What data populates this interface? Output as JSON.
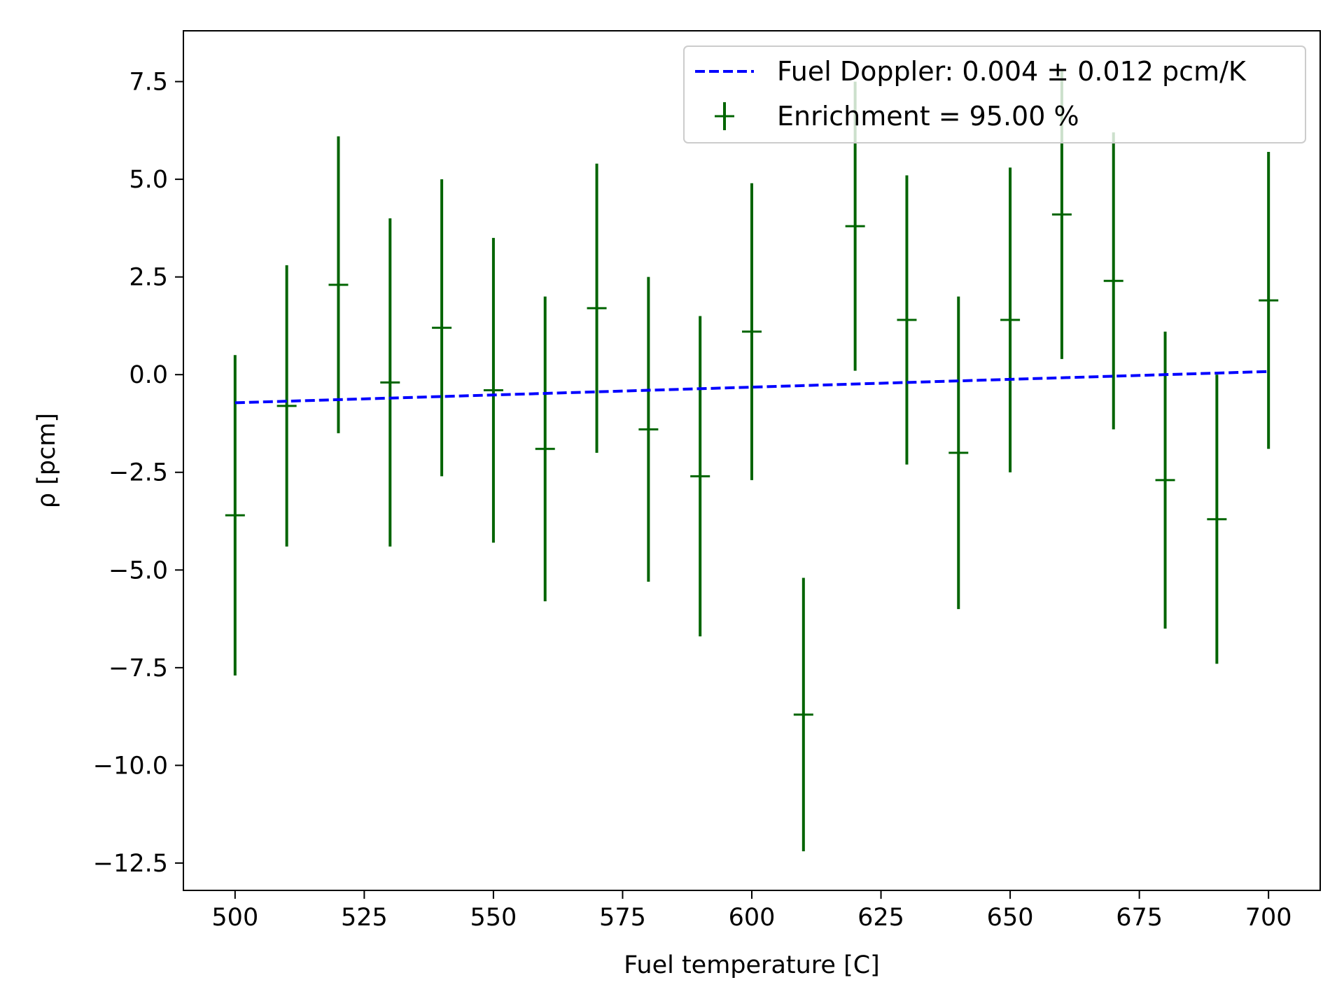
{
  "chart_data": {
    "type": "scatter",
    "xlabel": "Fuel temperature [C]",
    "ylabel": "ρ [pcm]",
    "xlim": [
      490,
      710
    ],
    "ylim": [
      -13.2,
      8.8
    ],
    "x_ticks": [
      500,
      525,
      550,
      575,
      600,
      625,
      650,
      675,
      700
    ],
    "x_tick_labels": [
      "500",
      "525",
      "550",
      "575",
      "600",
      "625",
      "650",
      "675",
      "700"
    ],
    "y_ticks": [
      7.5,
      5.0,
      2.5,
      0.0,
      -2.5,
      -5.0,
      -7.5,
      -10.0,
      -12.5
    ],
    "y_tick_labels": [
      "7.5",
      "5.0",
      "2.5",
      "0.0",
      "−2.5",
      "−5.0",
      "−7.5",
      "−10.0",
      "−12.5"
    ],
    "grid": false,
    "legend_position": "top-right",
    "series": [
      {
        "name": "Fuel Doppler: 0.004 ± 0.012 pcm/K",
        "kind": "line",
        "style": "dashed",
        "color": "#0000ff",
        "x": [
          500,
          700
        ],
        "y": [
          -0.72,
          0.08
        ]
      },
      {
        "name": "Enrichment = 95.00 %",
        "kind": "errorbar",
        "color": "#006400",
        "x": [
          500,
          510,
          520,
          530,
          540,
          550,
          560,
          570,
          580,
          590,
          600,
          610,
          620,
          630,
          640,
          650,
          660,
          670,
          680,
          690,
          700
        ],
        "y": [
          -3.6,
          -0.8,
          2.3,
          -0.2,
          1.2,
          -0.4,
          -1.9,
          1.7,
          -1.4,
          -2.6,
          1.1,
          -8.7,
          3.8,
          1.4,
          -2.0,
          1.4,
          4.1,
          2.4,
          -2.7,
          -3.7,
          1.9
        ],
        "yerr": [
          4.1,
          3.6,
          3.8,
          4.2,
          3.8,
          3.9,
          3.9,
          3.7,
          3.9,
          4.1,
          3.8,
          3.5,
          3.7,
          3.7,
          4.0,
          3.9,
          3.7,
          3.8,
          3.8,
          3.7,
          3.8
        ]
      }
    ]
  }
}
